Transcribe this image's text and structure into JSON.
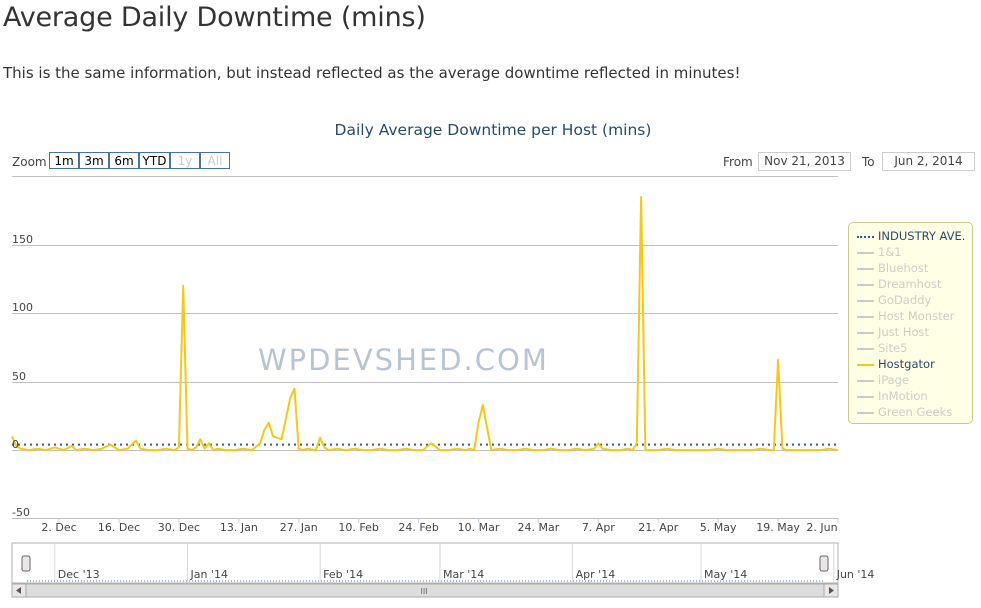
{
  "page": {
    "title": "Average Daily Downtime (mins)",
    "intro": "This is the same information, but instead reflected as the average downtime reflected in minutes!",
    "watermark": "WPDEVSHED.COM"
  },
  "range_selector": {
    "zoom_label": "Zoom",
    "buttons": [
      {
        "label": "1m",
        "enabled": true
      },
      {
        "label": "3m",
        "enabled": true
      },
      {
        "label": "6m",
        "enabled": true
      },
      {
        "label": "YTD",
        "enabled": true
      },
      {
        "label": "1y",
        "enabled": false
      },
      {
        "label": "All",
        "enabled": false
      }
    ],
    "from_label": "From",
    "from_value": "Nov 21, 2013",
    "to_label": "To",
    "to_value": "Jun 2, 2014"
  },
  "navigator": {
    "labels": [
      "Dec '13",
      "Jan '14",
      "Feb '14",
      "Mar '14",
      "Apr '14",
      "May '14",
      "Jun '14"
    ],
    "scrollbar_grip": "III"
  },
  "colors": {
    "hostgator": "#f6c812",
    "industry": "#2f5f8f",
    "inactive": "#cccccc",
    "legend_bg": "#ffffe6",
    "title": "#274b6d"
  },
  "chart_data": {
    "type": "line",
    "title": "Daily Average Downtime per Host (mins)",
    "x_start_date": "2013-11-21",
    "x_end_date": "2014-06-02",
    "ylim": [
      -50,
      200
    ],
    "y_ticks": [
      "150",
      "100",
      "50",
      "0",
      "-50"
    ],
    "x_ticks": [
      "2. Dec",
      "16. Dec",
      "30. Dec",
      "13. Jan",
      "27. Jan",
      "10. Feb",
      "24. Feb",
      "10. Mar",
      "24. Mar",
      "7. Apr",
      "21. Apr",
      "5. May",
      "19. May",
      "2. Jun"
    ],
    "legend_position": "right",
    "legend": [
      {
        "name": "INDUSTRY AVE.",
        "active": true,
        "style": "dotted"
      },
      {
        "name": "1&1",
        "active": false
      },
      {
        "name": "Bluehost",
        "active": false
      },
      {
        "name": "Dreamhost",
        "active": false
      },
      {
        "name": "GoDaddy",
        "active": false
      },
      {
        "name": "Host Monster",
        "active": false
      },
      {
        "name": "Just Host",
        "active": false
      },
      {
        "name": "Site5",
        "active": false
      },
      {
        "name": "Hostgator",
        "active": true,
        "style": "solid"
      },
      {
        "name": "iPage",
        "active": false
      },
      {
        "name": "InMotion",
        "active": false
      },
      {
        "name": "Green Geeks",
        "active": false
      }
    ],
    "series": [
      {
        "name": "INDUSTRY AVE.",
        "x": [
          "2013-11-21",
          "2014-06-02"
        ],
        "values": [
          4,
          4
        ]
      },
      {
        "name": "Hostgator",
        "x": [
          "2013-11-21",
          "2013-11-22",
          "2013-11-23",
          "2013-11-25",
          "2013-11-27",
          "2013-11-29",
          "2013-12-01",
          "2013-12-03",
          "2013-12-05",
          "2013-12-06",
          "2013-12-08",
          "2013-12-10",
          "2013-12-12",
          "2013-12-14",
          "2013-12-16",
          "2013-12-18",
          "2013-12-20",
          "2013-12-21",
          "2013-12-23",
          "2013-12-25",
          "2013-12-27",
          "2013-12-29",
          "2013-12-30",
          "2013-12-31",
          "2014-01-01",
          "2014-01-02",
          "2014-01-03",
          "2014-01-04",
          "2014-01-05",
          "2014-01-06",
          "2014-01-07",
          "2014-01-08",
          "2014-01-10",
          "2014-01-12",
          "2014-01-14",
          "2014-01-16",
          "2014-01-18",
          "2014-01-19",
          "2014-01-20",
          "2014-01-21",
          "2014-01-22",
          "2014-01-23",
          "2014-01-25",
          "2014-01-26",
          "2014-01-27",
          "2014-01-28",
          "2014-01-29",
          "2014-01-31",
          "2014-02-01",
          "2014-02-02",
          "2014-02-03",
          "2014-02-05",
          "2014-02-07",
          "2014-02-09",
          "2014-02-11",
          "2014-02-13",
          "2014-02-15",
          "2014-02-17",
          "2014-02-19",
          "2014-02-21",
          "2014-02-23",
          "2014-02-25",
          "2014-02-27",
          "2014-03-01",
          "2014-03-03",
          "2014-03-05",
          "2014-03-07",
          "2014-03-08",
          "2014-03-09",
          "2014-03-10",
          "2014-03-11",
          "2014-03-13",
          "2014-03-15",
          "2014-03-17",
          "2014-03-19",
          "2014-03-21",
          "2014-03-23",
          "2014-03-25",
          "2014-03-27",
          "2014-03-29",
          "2014-03-31",
          "2014-04-02",
          "2014-04-04",
          "2014-04-06",
          "2014-04-07",
          "2014-04-08",
          "2014-04-10",
          "2014-04-12",
          "2014-04-14",
          "2014-04-15",
          "2014-04-16",
          "2014-04-17",
          "2014-04-18",
          "2014-04-19",
          "2014-04-21",
          "2014-04-23",
          "2014-04-25",
          "2014-04-27",
          "2014-04-29",
          "2014-05-01",
          "2014-05-03",
          "2014-05-05",
          "2014-05-07",
          "2014-05-09",
          "2014-05-11",
          "2014-05-13",
          "2014-05-15",
          "2014-05-17",
          "2014-05-18",
          "2014-05-19",
          "2014-05-20",
          "2014-05-21",
          "2014-05-23",
          "2014-05-25",
          "2014-05-27",
          "2014-05-29",
          "2014-05-31",
          "2014-06-02"
        ],
        "values": [
          10,
          3,
          1,
          0,
          1,
          0,
          2,
          0,
          3,
          0,
          1,
          0,
          1,
          4,
          0,
          1,
          7,
          1,
          0,
          0,
          1,
          0,
          2,
          120,
          1,
          0,
          2,
          8,
          1,
          5,
          0,
          1,
          0,
          0,
          1,
          0,
          5,
          15,
          20,
          10,
          9,
          8,
          38,
          45,
          1,
          0,
          1,
          0,
          9,
          2,
          0,
          1,
          0,
          1,
          0,
          0,
          1,
          0,
          0,
          1,
          0,
          0,
          5,
          0,
          0,
          1,
          0,
          1,
          0,
          20,
          33,
          0,
          1,
          0,
          0,
          1,
          0,
          0,
          1,
          0,
          0,
          1,
          0,
          1,
          5,
          1,
          0,
          0,
          1,
          0,
          5,
          185,
          0,
          0,
          0,
          1,
          0,
          0,
          0,
          0,
          0,
          1,
          0,
          0,
          0,
          0,
          1,
          0,
          0,
          66,
          1,
          0,
          0,
          0,
          0,
          0,
          1,
          0
        ]
      }
    ]
  }
}
